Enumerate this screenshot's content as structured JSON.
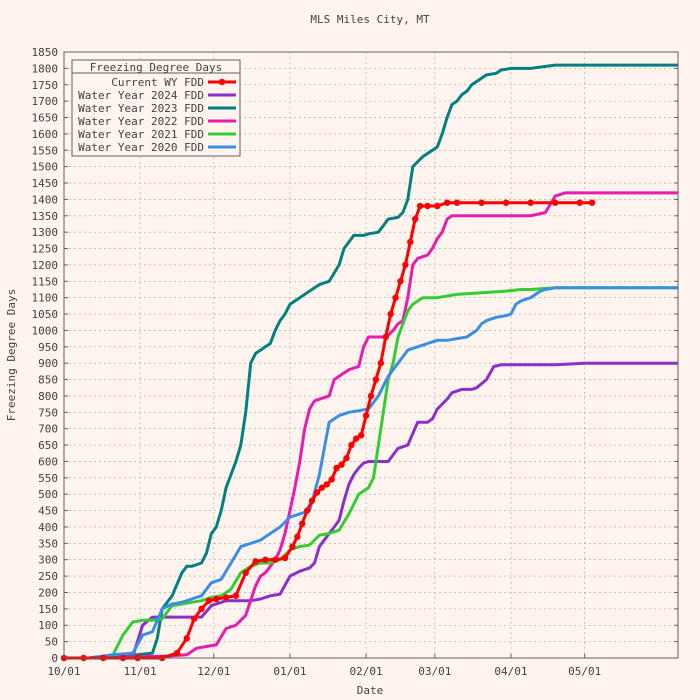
{
  "chart_data": {
    "type": "line",
    "title": "MLS Miles City, MT",
    "xlabel": "Date",
    "ylabel": "Freezing Degree Days",
    "ylim": [
      0,
      1850
    ],
    "ytick_step": 50,
    "x_start": "10/01",
    "x_end_day": 250,
    "x_ticks": [
      {
        "label": "10/01",
        "day": 0
      },
      {
        "label": "11/01",
        "day": 31
      },
      {
        "label": "12/01",
        "day": 61
      },
      {
        "label": "01/01",
        "day": 92
      },
      {
        "label": "02/01",
        "day": 123
      },
      {
        "label": "03/01",
        "day": 151
      },
      {
        "label": "04/01",
        "day": 182
      },
      {
        "label": "05/01",
        "day": 212
      }
    ],
    "grid": true,
    "legend_title": "Freezing Degree Days",
    "legend_position": "top-left",
    "series": [
      {
        "name": "Current WY FDD",
        "color": "#ff0000",
        "marker": true,
        "x": [
          0,
          8,
          16,
          24,
          30,
          40,
          46,
          50,
          53,
          56,
          59,
          62,
          66,
          70,
          74,
          78,
          82,
          86,
          90,
          93,
          95,
          97,
          99,
          101,
          103,
          105,
          107,
          109,
          111,
          113,
          115,
          117,
          119,
          121,
          123,
          125,
          127,
          129,
          131,
          133,
          135,
          137,
          139,
          141,
          143,
          145,
          148,
          152,
          156,
          160,
          170,
          180,
          190,
          200,
          210,
          215
        ],
        "y": [
          0,
          0,
          0,
          0,
          0,
          0,
          15,
          60,
          120,
          150,
          175,
          180,
          185,
          190,
          260,
          295,
          300,
          300,
          305,
          340,
          370,
          410,
          450,
          480,
          505,
          520,
          530,
          545,
          580,
          590,
          610,
          650,
          670,
          680,
          740,
          800,
          850,
          900,
          980,
          1050,
          1100,
          1150,
          1200,
          1270,
          1340,
          1380,
          1380,
          1380,
          1390,
          1390,
          1390,
          1390,
          1390,
          1390,
          1390,
          1390
        ]
      },
      {
        "name": "Water Year 2024 FDD",
        "color": "#8b2fc9",
        "marker": false,
        "x": [
          0,
          10,
          20,
          28,
          32,
          36,
          44,
          56,
          60,
          66,
          72,
          76,
          80,
          84,
          88,
          92,
          96,
          100,
          102,
          104,
          108,
          110,
          112,
          114,
          116,
          118,
          120,
          122,
          124,
          128,
          132,
          134,
          136,
          140,
          144,
          148,
          150,
          152,
          156,
          158,
          162,
          166,
          168,
          172,
          175,
          178,
          182,
          190,
          200,
          212,
          225,
          235,
          250
        ],
        "y": [
          0,
          0,
          0,
          5,
          100,
          125,
          125,
          125,
          160,
          175,
          175,
          175,
          180,
          190,
          195,
          250,
          265,
          275,
          290,
          340,
          380,
          400,
          420,
          480,
          530,
          560,
          580,
          595,
          600,
          600,
          600,
          620,
          640,
          650,
          720,
          720,
          730,
          760,
          790,
          810,
          820,
          820,
          825,
          850,
          890,
          895,
          895,
          895,
          895,
          900,
          900,
          900,
          900
        ]
      },
      {
        "name": "Water Year 2023 FDD",
        "color": "#008080",
        "marker": false,
        "x": [
          0,
          10,
          20,
          30,
          36,
          38,
          40,
          44,
          48,
          50,
          52,
          56,
          58,
          60,
          62,
          64,
          66,
          68,
          70,
          72,
          74,
          76,
          78,
          80,
          82,
          84,
          86,
          88,
          90,
          92,
          94,
          96,
          98,
          100,
          102,
          104,
          108,
          112,
          114,
          116,
          118,
          120,
          122,
          124,
          128,
          132,
          136,
          138,
          140,
          142,
          146,
          150,
          152,
          154,
          156,
          158,
          160,
          162,
          164,
          166,
          168,
          170,
          172,
          176,
          178,
          182,
          190,
          200,
          212,
          230,
          250
        ],
        "y": [
          0,
          0,
          5,
          10,
          15,
          60,
          150,
          190,
          260,
          280,
          280,
          290,
          320,
          380,
          400,
          450,
          520,
          560,
          600,
          650,
          750,
          900,
          930,
          940,
          950,
          960,
          1000,
          1030,
          1050,
          1080,
          1090,
          1100,
          1110,
          1120,
          1130,
          1140,
          1150,
          1200,
          1250,
          1270,
          1290,
          1290,
          1290,
          1295,
          1300,
          1340,
          1345,
          1360,
          1400,
          1500,
          1530,
          1550,
          1560,
          1600,
          1650,
          1690,
          1700,
          1720,
          1730,
          1750,
          1760,
          1770,
          1780,
          1785,
          1795,
          1800,
          1800,
          1810,
          1810,
          1810,
          1810
        ]
      },
      {
        "name": "Water Year 2022 FDD",
        "color": "#e81cae",
        "marker": false,
        "x": [
          0,
          10,
          20,
          30,
          40,
          50,
          54,
          58,
          62,
          66,
          70,
          74,
          78,
          80,
          82,
          84,
          86,
          88,
          90,
          92,
          94,
          96,
          98,
          100,
          102,
          104,
          106,
          108,
          110,
          112,
          114,
          116,
          118,
          120,
          122,
          124,
          126,
          128,
          130,
          132,
          134,
          136,
          138,
          140,
          142,
          144,
          146,
          148,
          150,
          152,
          154,
          156,
          158,
          160,
          170,
          180,
          190,
          196,
          200,
          204,
          212,
          230,
          250
        ],
        "y": [
          0,
          0,
          0,
          5,
          5,
          10,
          30,
          35,
          40,
          90,
          100,
          130,
          220,
          250,
          260,
          280,
          300,
          330,
          380,
          450,
          520,
          600,
          700,
          760,
          785,
          790,
          795,
          800,
          850,
          860,
          870,
          880,
          885,
          890,
          950,
          980,
          980,
          980,
          980,
          985,
          1000,
          1020,
          1030,
          1100,
          1200,
          1220,
          1225,
          1230,
          1250,
          1280,
          1300,
          1340,
          1350,
          1350,
          1350,
          1350,
          1350,
          1360,
          1410,
          1420,
          1420,
          1420,
          1420
        ]
      },
      {
        "name": "Water Year 2021 FDD",
        "color": "#33cc33",
        "marker": false,
        "x": [
          0,
          10,
          16,
          20,
          24,
          28,
          32,
          36,
          40,
          44,
          48,
          52,
          56,
          60,
          64,
          68,
          72,
          76,
          80,
          84,
          88,
          92,
          96,
          100,
          104,
          108,
          112,
          116,
          120,
          124,
          126,
          128,
          130,
          132,
          134,
          136,
          138,
          140,
          142,
          144,
          146,
          148,
          152,
          156,
          160,
          170,
          180,
          186,
          190,
          200,
          212,
          230,
          250
        ],
        "y": [
          0,
          0,
          5,
          10,
          70,
          110,
          115,
          115,
          120,
          160,
          165,
          170,
          175,
          185,
          190,
          210,
          260,
          280,
          290,
          290,
          300,
          330,
          340,
          345,
          375,
          380,
          390,
          440,
          500,
          520,
          550,
          650,
          750,
          850,
          900,
          980,
          1020,
          1060,
          1080,
          1090,
          1100,
          1100,
          1100,
          1105,
          1110,
          1115,
          1120,
          1125,
          1125,
          1130,
          1130,
          1130,
          1130
        ]
      },
      {
        "name": "Water Year 2020 FDD",
        "color": "#3a8ee6",
        "marker": false,
        "x": [
          0,
          10,
          20,
          28,
          32,
          36,
          40,
          44,
          48,
          52,
          56,
          60,
          64,
          68,
          72,
          76,
          80,
          84,
          88,
          92,
          96,
          100,
          104,
          108,
          112,
          116,
          120,
          124,
          126,
          128,
          130,
          132,
          134,
          136,
          138,
          140,
          142,
          144,
          146,
          148,
          150,
          152,
          156,
          160,
          164,
          168,
          170,
          172,
          176,
          180,
          182,
          184,
          186,
          190,
          194,
          196,
          200,
          212,
          230,
          250
        ],
        "y": [
          0,
          0,
          10,
          15,
          70,
          80,
          150,
          165,
          170,
          180,
          190,
          230,
          240,
          290,
          340,
          350,
          360,
          380,
          400,
          430,
          440,
          450,
          560,
          720,
          740,
          750,
          755,
          760,
          780,
          800,
          830,
          860,
          880,
          900,
          920,
          940,
          945,
          950,
          955,
          960,
          965,
          970,
          970,
          975,
          980,
          1000,
          1020,
          1030,
          1040,
          1045,
          1050,
          1080,
          1090,
          1100,
          1120,
          1125,
          1130,
          1130,
          1130,
          1130
        ]
      }
    ]
  }
}
